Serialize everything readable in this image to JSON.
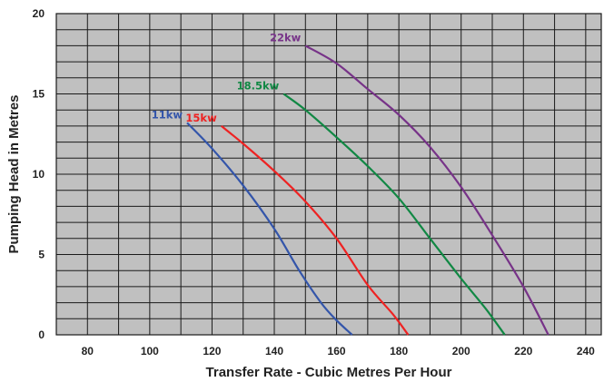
{
  "chart_data": {
    "type": "line",
    "title": "",
    "xlabel": "Transfer Rate - Cubic Metres Per Hour",
    "ylabel": "Pumping Head in Metres",
    "xlim": [
      70,
      245
    ],
    "ylim": [
      0,
      20
    ],
    "x_ticks": [
      "80",
      "100",
      "120",
      "140",
      "160",
      "180",
      "200",
      "220",
      "240"
    ],
    "y_ticks": [
      "0",
      "5",
      "10",
      "15",
      "20"
    ],
    "grid": true,
    "plot_background": "#c0c0c0",
    "grid_color": "#1a1a1a",
    "series": [
      {
        "name": "11kw",
        "color": "#3355aa",
        "x": [
          112,
          120,
          130,
          140,
          148,
          155,
          160,
          165
        ],
        "y": [
          13.2,
          11.6,
          9.3,
          6.6,
          4.0,
          2.0,
          0.9,
          0
        ]
      },
      {
        "name": "15kw",
        "color": "#ee2222",
        "x": [
          123,
          130,
          140,
          150,
          160,
          170,
          178,
          183
        ],
        "y": [
          13.0,
          11.9,
          10.2,
          8.3,
          6.0,
          3.1,
          1.3,
          0
        ]
      },
      {
        "name": "18.5kw",
        "color": "#118844",
        "x": [
          143,
          150,
          160,
          170,
          180,
          190,
          200,
          208,
          214
        ],
        "y": [
          15.0,
          14.0,
          12.3,
          10.5,
          8.5,
          6.0,
          3.5,
          1.6,
          0
        ]
      },
      {
        "name": "22kw",
        "color": "#773388",
        "x": [
          150,
          160,
          170,
          180,
          190,
          200,
          210,
          220,
          228
        ],
        "y": [
          18.0,
          16.9,
          15.3,
          13.7,
          11.7,
          9.2,
          6.2,
          3.0,
          0
        ]
      }
    ]
  }
}
